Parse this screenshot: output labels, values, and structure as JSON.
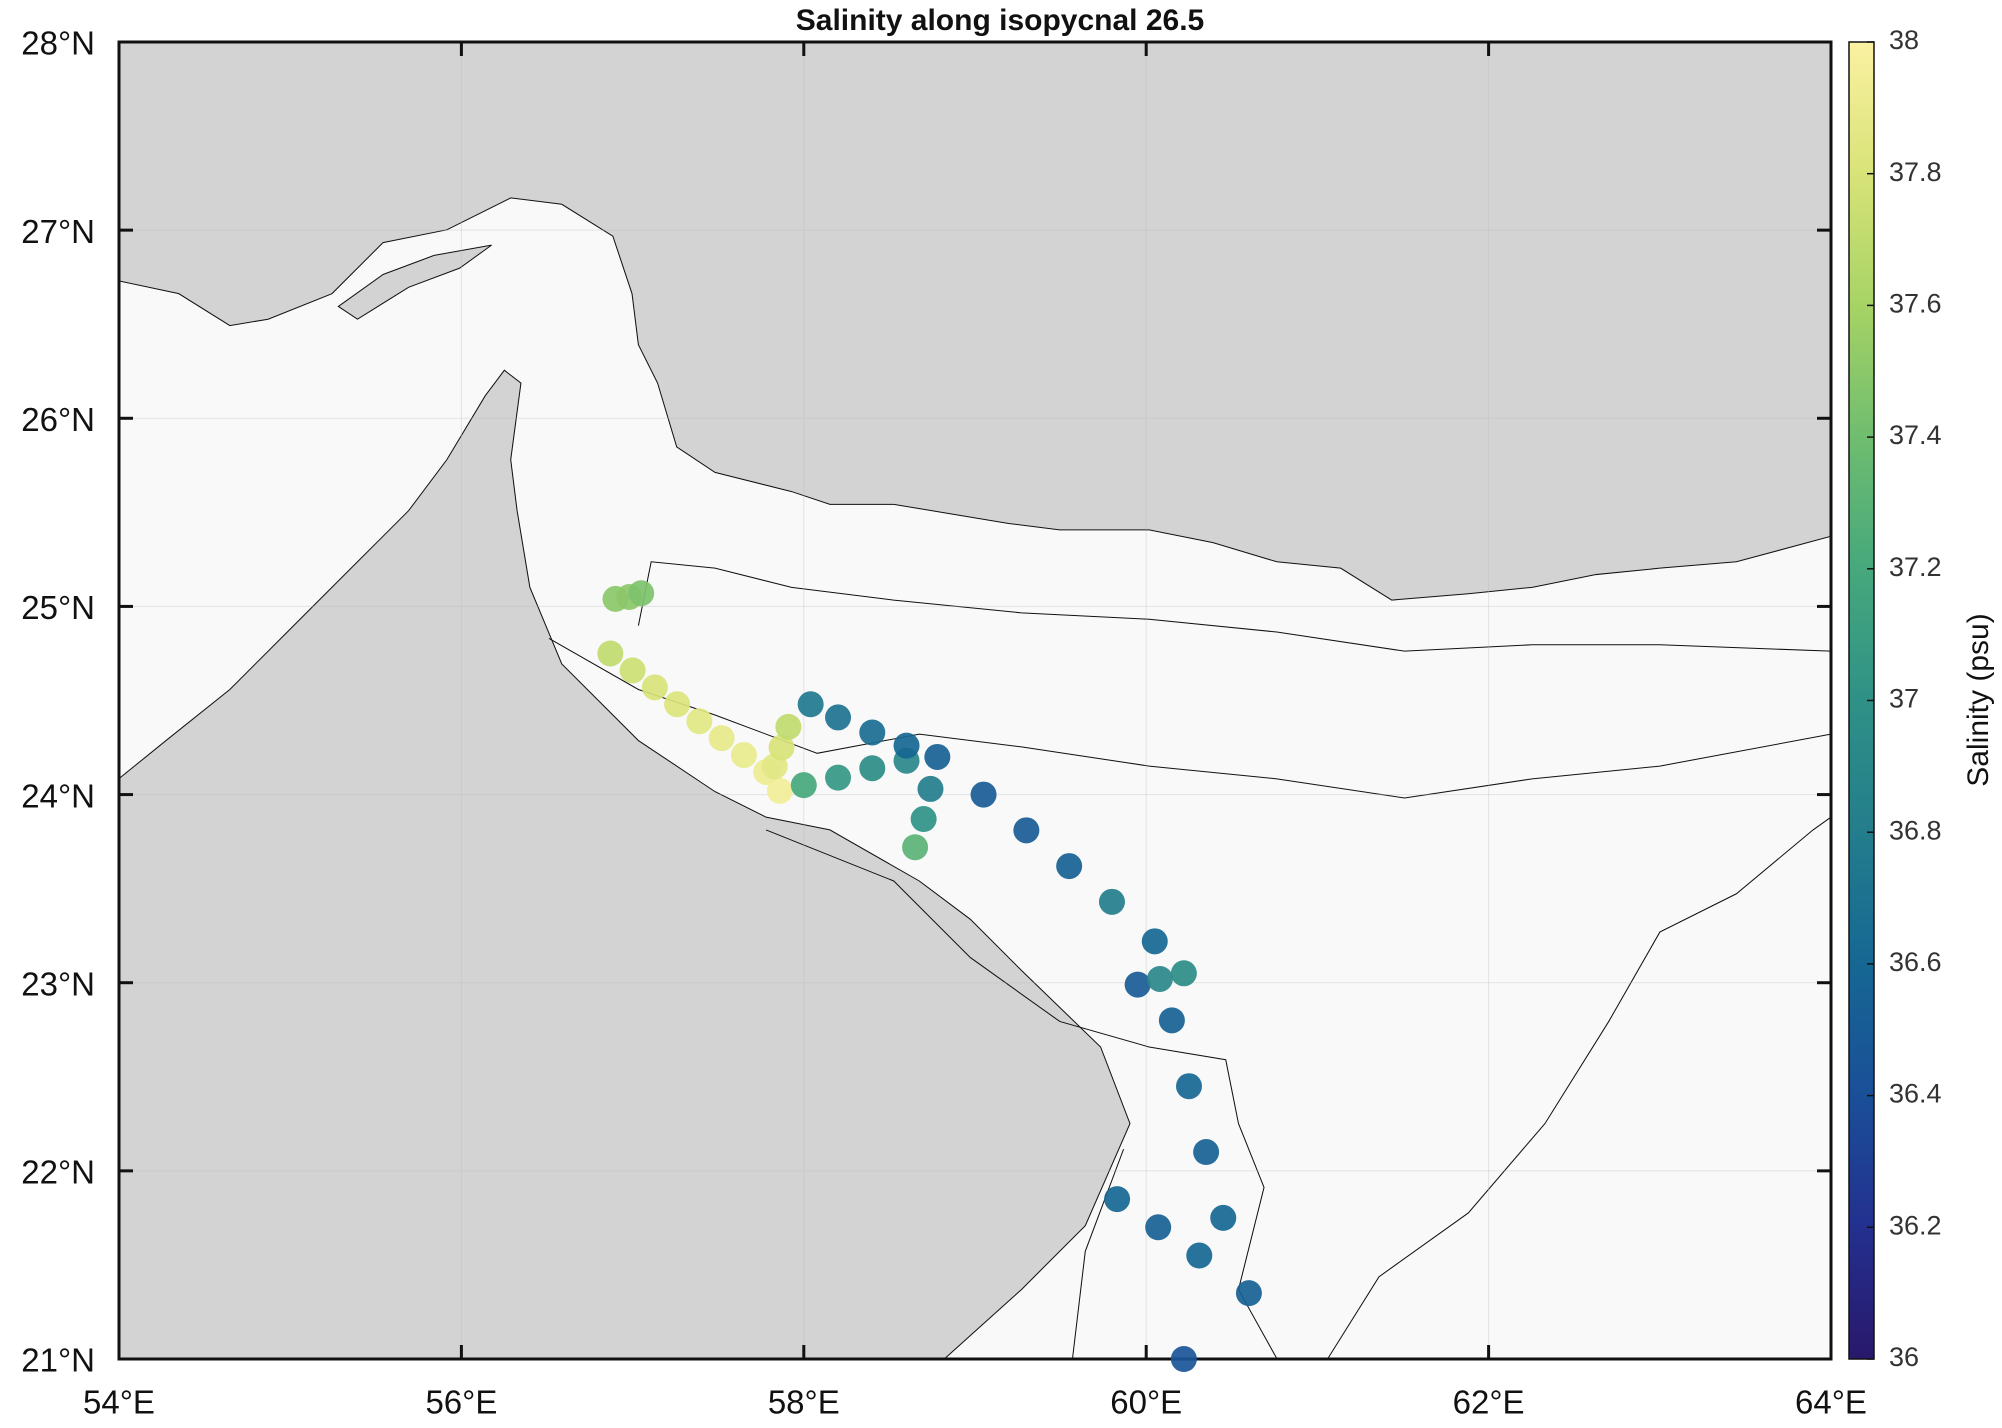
{
  "chart_data": {
    "type": "scatter",
    "title": "Salinity along isopycnal 26.5",
    "colorbar_label": "Salinity (psu)",
    "xlim": [
      54,
      64
    ],
    "xticks": [
      {
        "value": 54,
        "label": "54°E"
      },
      {
        "value": 56,
        "label": "56°E"
      },
      {
        "value": 58,
        "label": "58°E"
      },
      {
        "value": 60,
        "label": "60°E"
      },
      {
        "value": 62,
        "label": "62°E"
      },
      {
        "value": 64,
        "label": "64°E"
      }
    ],
    "ylim": [
      21,
      28
    ],
    "yticks": [
      {
        "value": 21,
        "label": "21°N"
      },
      {
        "value": 22,
        "label": "22°N"
      },
      {
        "value": 23,
        "label": "23°N"
      },
      {
        "value": 24,
        "label": "24°N"
      },
      {
        "value": 25,
        "label": "25°N"
      },
      {
        "value": 26,
        "label": "26°N"
      },
      {
        "value": 27,
        "label": "27°N"
      },
      {
        "value": 28,
        "label": "28°N"
      }
    ],
    "clim": [
      36,
      38
    ],
    "cticks": [
      36,
      36.2,
      36.4,
      36.6,
      36.8,
      37,
      37.2,
      37.4,
      37.6,
      37.8,
      38
    ],
    "colormap": [
      "#29186b",
      "#23308f",
      "#1a4f98",
      "#166793",
      "#237d8c",
      "#2f9186",
      "#46a87c",
      "#6fbd6f",
      "#a7d365",
      "#d8e378",
      "#fbf1a2"
    ],
    "grid": true,
    "x": [
      56.9,
      56.98,
      57.05,
      56.87,
      57.0,
      57.13,
      57.26,
      57.39,
      57.52,
      57.65,
      57.78,
      57.86,
      57.83,
      57.87,
      57.91,
      58.0,
      58.2,
      58.4,
      58.6,
      58.04,
      58.2,
      58.4,
      58.6,
      58.78,
      58.74,
      58.7,
      58.65,
      59.05,
      59.3,
      59.55,
      59.8,
      60.05,
      59.95,
      60.08,
      60.22,
      60.15,
      60.25,
      60.35,
      60.45,
      60.6,
      59.83,
      60.07,
      60.31,
      60.22
    ],
    "y": [
      25.04,
      25.05,
      25.07,
      24.75,
      24.66,
      24.57,
      24.48,
      24.39,
      24.3,
      24.21,
      24.12,
      24.02,
      24.15,
      24.25,
      24.36,
      24.05,
      24.09,
      24.14,
      24.18,
      24.48,
      24.41,
      24.33,
      24.26,
      24.2,
      24.03,
      23.87,
      23.72,
      24.0,
      23.81,
      23.62,
      23.43,
      23.22,
      22.99,
      23.02,
      23.05,
      22.8,
      22.45,
      22.1,
      21.75,
      21.35,
      21.85,
      21.7,
      21.55,
      21.0
    ],
    "values": [
      37.5,
      37.5,
      37.45,
      37.7,
      37.75,
      37.8,
      37.82,
      37.85,
      37.88,
      37.9,
      37.92,
      37.95,
      37.85,
      37.8,
      37.7,
      37.2,
      37.05,
      36.95,
      36.9,
      36.75,
      36.7,
      36.65,
      36.6,
      36.55,
      36.8,
      37.0,
      37.3,
      36.5,
      36.5,
      36.55,
      36.8,
      36.6,
      36.5,
      36.9,
      36.95,
      36.55,
      36.6,
      36.55,
      36.6,
      36.55,
      36.6,
      36.55,
      36.6,
      36.45
    ]
  }
}
